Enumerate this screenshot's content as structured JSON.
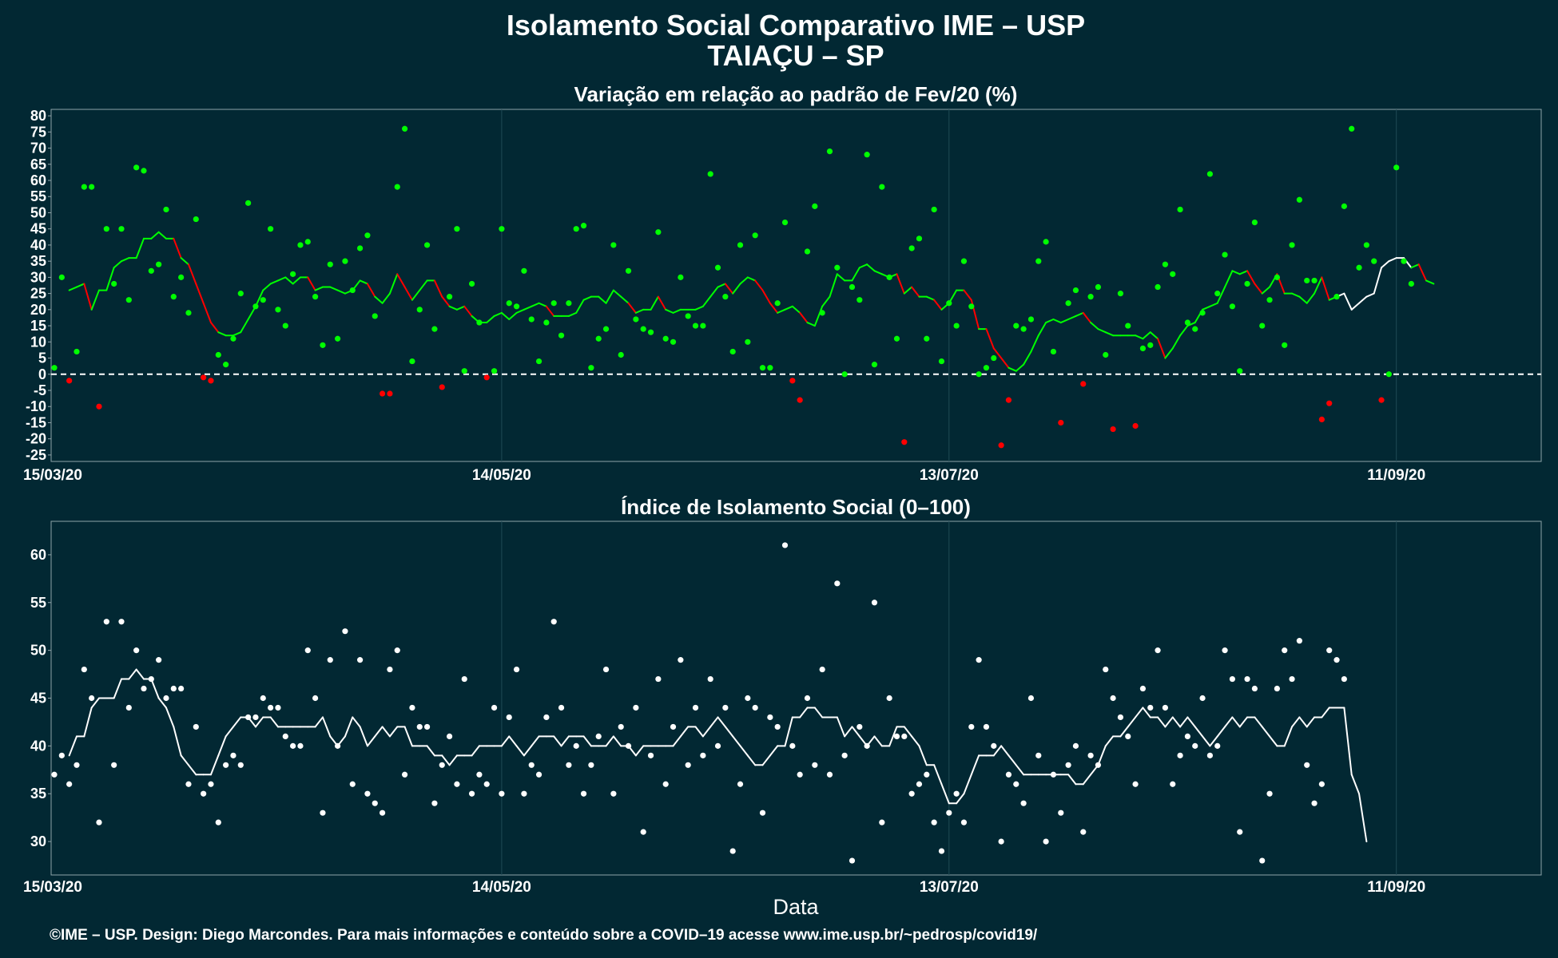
{
  "header": {
    "title": "Isolamento Social Comparativo IME – USP",
    "subtitle": "TAIAÇU – SP"
  },
  "footer": {
    "credit": "©IME – USP. Design: Diego Marcondes. Para mais informações e conteúdo sobre a COVID–19 acesse www.ime.usp.br/~pedrosp/covid19/"
  },
  "colors": {
    "background": "#022833",
    "positive": "#00ff00",
    "negative": "#ff0000",
    "index": "#ffffff"
  },
  "chart_data": [
    {
      "type": "scatter",
      "title": "Variação em relação ao padrão de Fev/20 (%)",
      "xlabel": "",
      "x_range": [
        "15/03/20",
        "30/09/20"
      ],
      "x_ticks": [
        "15/03/20",
        "14/05/20",
        "13/07/20",
        "11/09/20"
      ],
      "ylim": [
        -27,
        82
      ],
      "y_ticks": [
        80,
        75,
        70,
        65,
        60,
        55,
        50,
        45,
        40,
        35,
        30,
        25,
        20,
        15,
        10,
        5,
        0,
        -5,
        -10,
        -15,
        -20,
        -25
      ],
      "reference_line": 0,
      "grid": "vertical",
      "series": [
        {
          "type": "scatter",
          "values": [
            2,
            30,
            -2,
            7,
            58,
            58,
            -10,
            45,
            28,
            45,
            23,
            64,
            63,
            32,
            34,
            51,
            24,
            30,
            19,
            48,
            -1,
            -2,
            6,
            3,
            11,
            25,
            53,
            21,
            23,
            45,
            20,
            15,
            31,
            40,
            41,
            24,
            9,
            34,
            11,
            35,
            26,
            39,
            43,
            18,
            -6,
            -6,
            58,
            76,
            4,
            20,
            40,
            14,
            -4,
            24,
            45,
            1,
            28,
            16,
            -1,
            1,
            45,
            22,
            21,
            32,
            17,
            4,
            16,
            22,
            12,
            22,
            45,
            46,
            2,
            11,
            14,
            40,
            6,
            32,
            17,
            14,
            13,
            44,
            11,
            10,
            30,
            18,
            15,
            15,
            62,
            33,
            24,
            7,
            40,
            10,
            43,
            2,
            2,
            22,
            47,
            -2,
            -8,
            38,
            52,
            19,
            69,
            33,
            0,
            27,
            23,
            68,
            3,
            58,
            30,
            11,
            -21,
            39,
            42,
            11,
            51,
            4,
            22,
            15,
            35,
            21,
            0,
            2,
            5,
            -22,
            -8,
            15,
            14,
            17,
            35,
            41,
            7,
            -15,
            22,
            26,
            -3,
            24,
            27,
            6,
            -17,
            25,
            15,
            -16,
            8,
            9,
            27,
            34,
            31,
            51,
            16,
            14,
            19,
            62,
            25,
            37,
            21,
            1,
            28,
            47,
            15,
            23,
            30,
            9,
            40,
            54,
            29,
            29,
            -14,
            -9,
            24,
            52,
            76,
            33,
            40,
            35,
            -8,
            0,
            64,
            35,
            28
          ]
        },
        {
          "type": "line",
          "name": "moving-average",
          "values": [
            26,
            27,
            28,
            20,
            26,
            26,
            33,
            35,
            36,
            36,
            42,
            42,
            44,
            42,
            42,
            36,
            34,
            28,
            22,
            16,
            13,
            12,
            12,
            13,
            17,
            21,
            26,
            28,
            29,
            30,
            28,
            30,
            30,
            26,
            27,
            27,
            26,
            25,
            26,
            29,
            28,
            24,
            22,
            25,
            31,
            27,
            23,
            26,
            29,
            29,
            24,
            21,
            20,
            21,
            18,
            16,
            16,
            18,
            19,
            17,
            19,
            20,
            21,
            22,
            21,
            18,
            18,
            18,
            19,
            23,
            24,
            24,
            22,
            26,
            24,
            22,
            19,
            20,
            20,
            24,
            20,
            19,
            20,
            20,
            20,
            21,
            24,
            27,
            28,
            25,
            28,
            30,
            29,
            26,
            22,
            19,
            20,
            21,
            19,
            16,
            15,
            21,
            24,
            31,
            29,
            29,
            33,
            34,
            32,
            31,
            30,
            31,
            25,
            27,
            24,
            24,
            23,
            20,
            22,
            26,
            26,
            23,
            14,
            14,
            8,
            5,
            2,
            1,
            3,
            7,
            12,
            16,
            17,
            16,
            17,
            18,
            19,
            16,
            14,
            13,
            12,
            12,
            12,
            12,
            11,
            13,
            11,
            5,
            8,
            12,
            15,
            16,
            20,
            21,
            22,
            27,
            32,
            31,
            32,
            28,
            25,
            27,
            31,
            25,
            25,
            24,
            22,
            25,
            30,
            23,
            24,
            25,
            20,
            22,
            24,
            25,
            33,
            35,
            36,
            36,
            33,
            34,
            29,
            28
          ]
        }
      ]
    },
    {
      "type": "scatter",
      "title": "Índice de Isolamento Social (0–100)",
      "xlabel": "Data",
      "x_range": [
        "15/03/20",
        "30/09/20"
      ],
      "x_ticks": [
        "15/03/20",
        "14/05/20",
        "13/07/20",
        "11/09/20"
      ],
      "ylim": [
        26.5,
        63.5
      ],
      "y_ticks": [
        60,
        55,
        50,
        45,
        40,
        35,
        30
      ],
      "grid": "vertical",
      "series": [
        {
          "type": "scatter",
          "values": [
            37,
            39,
            36,
            38,
            48,
            45,
            32,
            53,
            38,
            53,
            44,
            50,
            46,
            47,
            49,
            45,
            46,
            46,
            36,
            42,
            35,
            36,
            32,
            38,
            39,
            38,
            43,
            43,
            45,
            44,
            44,
            41,
            40,
            40,
            50,
            45,
            33,
            49,
            40,
            52,
            36,
            49,
            35,
            34,
            33,
            48,
            50,
            37,
            44,
            42,
            42,
            34,
            38,
            41,
            36,
            47,
            35,
            37,
            36,
            44,
            35,
            43,
            48,
            35,
            38,
            37,
            43,
            53,
            44,
            38,
            40,
            35,
            38,
            41,
            48,
            35,
            42,
            40,
            44,
            31,
            39,
            47,
            36,
            42,
            49,
            38,
            44,
            39,
            47,
            40,
            44,
            29,
            36,
            45,
            44,
            33,
            43,
            42,
            61,
            40,
            37,
            45,
            38,
            48,
            37,
            57,
            39,
            28,
            42,
            40,
            55,
            32,
            45,
            41,
            41,
            35,
            36,
            37,
            32,
            29,
            33,
            35,
            32,
            42,
            49,
            42,
            40,
            30,
            37,
            36,
            34,
            45,
            39,
            30,
            37,
            33,
            38,
            40,
            31,
            39,
            38,
            48,
            45,
            43,
            41,
            36,
            46,
            44,
            50,
            44,
            36,
            39,
            41,
            40,
            45,
            39,
            40,
            50,
            47,
            31,
            47,
            46,
            28,
            35,
            46,
            50,
            47,
            51,
            38,
            34,
            36,
            50,
            49,
            47
          ]
        },
        {
          "type": "line",
          "name": "moving-average",
          "values": [
            39,
            41,
            41,
            44,
            45,
            45,
            45,
            47,
            47,
            48,
            47,
            47,
            45,
            44,
            42,
            39,
            38,
            37,
            37,
            37,
            39,
            41,
            42,
            43,
            43,
            42,
            43,
            43,
            42,
            42,
            42,
            42,
            42,
            42,
            43,
            41,
            40,
            41,
            43,
            42,
            40,
            41,
            42,
            41,
            42,
            42,
            40,
            40,
            40,
            39,
            39,
            38,
            39,
            39,
            39,
            40,
            40,
            40,
            40,
            41,
            40,
            39,
            40,
            41,
            41,
            41,
            40,
            41,
            41,
            41,
            40,
            40,
            40,
            41,
            40,
            40,
            39,
            40,
            40,
            40,
            40,
            40,
            41,
            42,
            42,
            41,
            42,
            43,
            42,
            41,
            40,
            39,
            38,
            38,
            39,
            40,
            40,
            43,
            43,
            44,
            44,
            43,
            43,
            43,
            41,
            42,
            41,
            40,
            41,
            40,
            40,
            42,
            42,
            41,
            40,
            38,
            38,
            36,
            34,
            34,
            35,
            37,
            39,
            39,
            39,
            40,
            39,
            38,
            37,
            37,
            37,
            37,
            37,
            37,
            37,
            36,
            36,
            37,
            38,
            40,
            41,
            41,
            42,
            43,
            44,
            43,
            43,
            42,
            43,
            42,
            43,
            42,
            41,
            40,
            41,
            42,
            43,
            42,
            43,
            43,
            42,
            41,
            40,
            40,
            42,
            43,
            42,
            43,
            43,
            44,
            44,
            44,
            37,
            35,
            30
          ]
        }
      ]
    }
  ]
}
